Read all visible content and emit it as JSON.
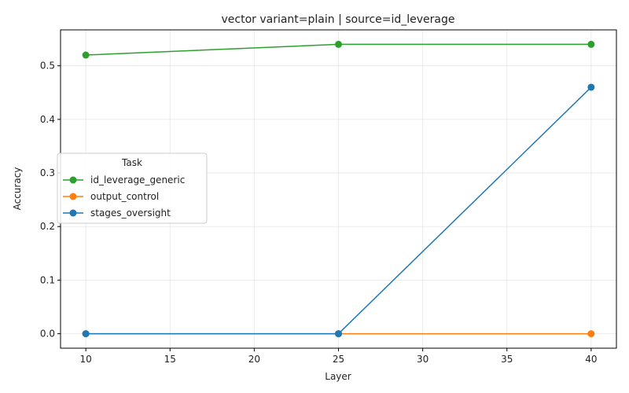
{
  "chart_data": {
    "type": "line",
    "title": "vector variant=plain | source=id_leverage",
    "xlabel": "Layer",
    "ylabel": "Accuracy",
    "x": [
      10,
      25,
      40
    ],
    "xlim": [
      8.5,
      41.5
    ],
    "ylim": [
      -0.027,
      0.567
    ],
    "xticks": [
      10,
      15,
      20,
      25,
      30,
      35,
      40
    ],
    "yticks": [
      0.0,
      0.1,
      0.2,
      0.3,
      0.4,
      0.5
    ],
    "ytick_labels": [
      "0.0",
      "0.1",
      "0.2",
      "0.3",
      "0.4",
      "0.5"
    ],
    "grid": true,
    "legend": {
      "title": "Task",
      "position": "center-left"
    },
    "series": [
      {
        "name": "id_leverage_generic",
        "color": "#2ca02c",
        "values": [
          0.52,
          0.54,
          0.54
        ]
      },
      {
        "name": "output_control",
        "color": "#ff7f0e",
        "values": [
          0.0,
          0.0,
          0.0
        ]
      },
      {
        "name": "stages_oversight",
        "color": "#1f77b4",
        "values": [
          0.0,
          0.0,
          0.46
        ]
      }
    ]
  }
}
